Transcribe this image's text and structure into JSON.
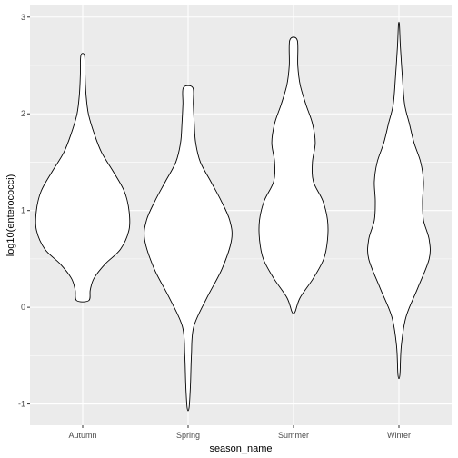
{
  "chart_data": {
    "type": "violin",
    "xlabel": "season_name",
    "ylabel": "log10(enterococci)",
    "categories": [
      "Autumn",
      "Spring",
      "Summer",
      "Winter"
    ],
    "ylim": [
      -1.22,
      3.12
    ],
    "yticks": [
      -1,
      0,
      1,
      2,
      3
    ],
    "grid": true,
    "colors": {
      "panel": "#ebebeb",
      "grid_major": "#ffffff",
      "violin_fill": "#ffffff",
      "violin_stroke": "#000000",
      "tick_text": "#4d4d4d",
      "title_text": "#000000"
    },
    "series": [
      {
        "category": "Autumn",
        "ymin": 0.07,
        "ymax": 2.6,
        "density_profile": [
          [
            0.07,
            0.13
          ],
          [
            0.18,
            0.16
          ],
          [
            0.3,
            0.24
          ],
          [
            0.45,
            0.48
          ],
          [
            0.6,
            0.8
          ],
          [
            0.8,
            0.98
          ],
          [
            1.0,
            0.98
          ],
          [
            1.2,
            0.88
          ],
          [
            1.4,
            0.65
          ],
          [
            1.6,
            0.4
          ],
          [
            1.8,
            0.24
          ],
          [
            2.0,
            0.12
          ],
          [
            2.2,
            0.07
          ],
          [
            2.4,
            0.05
          ],
          [
            2.6,
            0.04
          ]
        ]
      },
      {
        "category": "Spring",
        "ymin": -1.04,
        "ymax": 2.27,
        "density_profile": [
          [
            -1.04,
            0.02
          ],
          [
            -0.8,
            0.05
          ],
          [
            -0.5,
            0.07
          ],
          [
            -0.2,
            0.12
          ],
          [
            0.1,
            0.4
          ],
          [
            0.4,
            0.72
          ],
          [
            0.7,
            0.92
          ],
          [
            0.9,
            0.88
          ],
          [
            1.1,
            0.7
          ],
          [
            1.3,
            0.48
          ],
          [
            1.5,
            0.26
          ],
          [
            1.7,
            0.16
          ],
          [
            1.9,
            0.13
          ],
          [
            2.1,
            0.11
          ],
          [
            2.27,
            0.1
          ]
        ]
      },
      {
        "category": "Summer",
        "ymin": -0.05,
        "ymax": 2.76,
        "density_profile": [
          [
            -0.05,
            0.03
          ],
          [
            0.1,
            0.14
          ],
          [
            0.3,
            0.42
          ],
          [
            0.5,
            0.64
          ],
          [
            0.7,
            0.72
          ],
          [
            0.9,
            0.72
          ],
          [
            1.1,
            0.62
          ],
          [
            1.3,
            0.42
          ],
          [
            1.5,
            0.4
          ],
          [
            1.7,
            0.46
          ],
          [
            1.9,
            0.4
          ],
          [
            2.1,
            0.26
          ],
          [
            2.3,
            0.14
          ],
          [
            2.5,
            0.09
          ],
          [
            2.76,
            0.08
          ]
        ]
      },
      {
        "category": "Winter",
        "ymin": -0.7,
        "ymax": 2.92,
        "density_profile": [
          [
            -0.7,
            0.02
          ],
          [
            -0.4,
            0.05
          ],
          [
            -0.1,
            0.15
          ],
          [
            0.2,
            0.4
          ],
          [
            0.5,
            0.64
          ],
          [
            0.7,
            0.64
          ],
          [
            0.9,
            0.52
          ],
          [
            1.1,
            0.5
          ],
          [
            1.3,
            0.52
          ],
          [
            1.5,
            0.46
          ],
          [
            1.7,
            0.32
          ],
          [
            1.9,
            0.22
          ],
          [
            2.1,
            0.12
          ],
          [
            2.4,
            0.07
          ],
          [
            2.7,
            0.03
          ],
          [
            2.92,
            0.01
          ]
        ]
      }
    ]
  }
}
